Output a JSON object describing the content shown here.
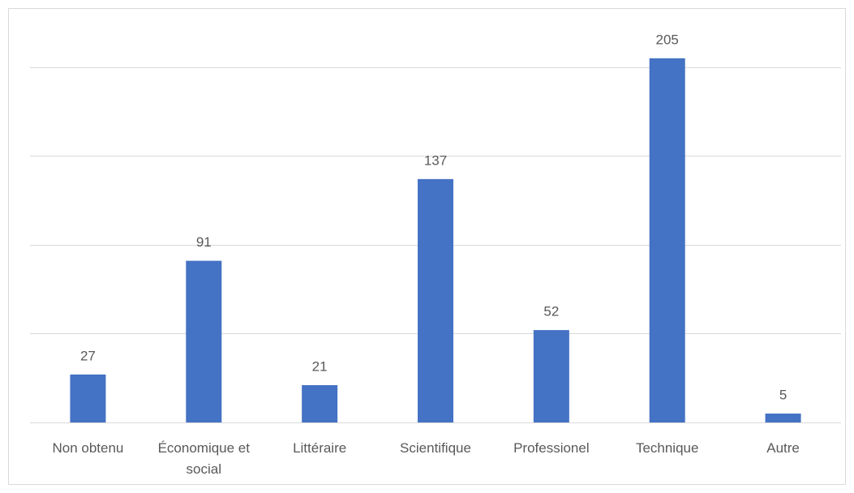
{
  "chart_data": {
    "type": "bar",
    "categories": [
      "Non obtenu",
      "Économique et social",
      "Littéraire",
      "Scientifique",
      "Professionel",
      "Technique",
      "Autre"
    ],
    "values": [
      27,
      91,
      21,
      137,
      52,
      205,
      5
    ],
    "color": "#4472c4",
    "ylim": [
      0,
      220
    ],
    "yticks": [
      0,
      50,
      100,
      150,
      200
    ],
    "grid": true
  }
}
